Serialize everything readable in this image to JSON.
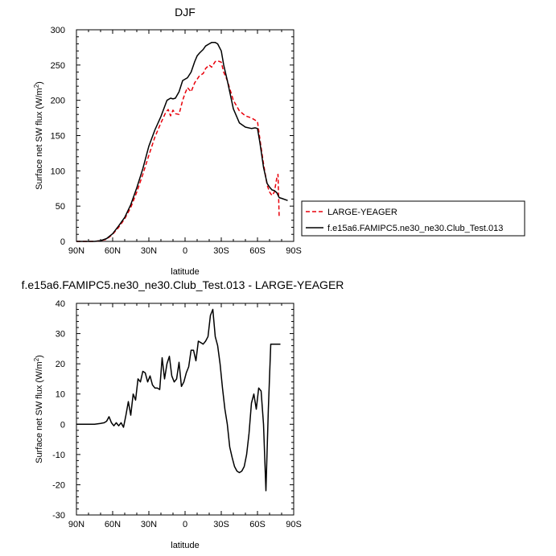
{
  "chart_data": [
    {
      "type": "line",
      "title": "DJF",
      "xlabel": "latitude",
      "ylabel": "Surface net SW flux (W/m²)",
      "xlim": [
        90,
        -90
      ],
      "ylim": [
        0,
        300
      ],
      "xticks": [
        90,
        60,
        30,
        0,
        -30,
        -60,
        -90
      ],
      "xtick_labels": [
        "90N",
        "60N",
        "30N",
        "0",
        "30S",
        "60S",
        "90S"
      ],
      "yticks": [
        0,
        50,
        100,
        150,
        200,
        250,
        300
      ],
      "ytick_labels": [
        "0",
        "50",
        "100",
        "150",
        "200",
        "250",
        "300"
      ],
      "legend": "right",
      "series": [
        {
          "name": "LARGE-YEAGER",
          "color": "#e8000b",
          "dash": "dashed",
          "x": [
            90,
            80,
            75,
            70,
            65,
            60,
            55,
            50,
            45,
            40,
            35,
            30,
            25,
            20,
            16,
            14,
            12,
            10,
            8,
            5,
            2,
            0,
            -2,
            -5,
            -8,
            -10,
            -12,
            -15,
            -17,
            -20,
            -22,
            -25,
            -27,
            -30,
            -32,
            -35,
            -40,
            -45,
            -50,
            -55,
            -60,
            -62,
            -65,
            -68,
            -70,
            -72,
            -74,
            -76,
            -77,
            -78
          ],
          "y": [
            0,
            0,
            0,
            1,
            3,
            10,
            20,
            32,
            48,
            70,
            95,
            122,
            148,
            168,
            183,
            187,
            178,
            186,
            181,
            180,
            200,
            210,
            218,
            212,
            225,
            230,
            235,
            238,
            245,
            250,
            247,
            255,
            256,
            254,
            240,
            228,
            200,
            185,
            178,
            175,
            170,
            145,
            110,
            80,
            70,
            65,
            70,
            90,
            95,
            33
          ]
        },
        {
          "name": "f.e15a6.FAMIPC5.ne30_ne30.Club_Test.013",
          "color": "#000000",
          "dash": "solid",
          "x": [
            90,
            80,
            75,
            70,
            65,
            60,
            55,
            50,
            45,
            40,
            35,
            30,
            25,
            20,
            15,
            12,
            10,
            8,
            5,
            2,
            0,
            -2,
            -5,
            -8,
            -10,
            -12,
            -15,
            -17,
            -20,
            -22,
            -25,
            -27,
            -30,
            -32,
            -35,
            -40,
            -45,
            -50,
            -55,
            -58,
            -60,
            -62,
            -65,
            -68,
            -70,
            -72,
            -74,
            -76,
            -78,
            -80,
            -85
          ],
          "y": [
            0,
            0,
            0,
            1,
            4,
            11,
            22,
            34,
            52,
            76,
            103,
            135,
            158,
            177,
            200,
            203,
            202,
            203,
            212,
            228,
            230,
            232,
            240,
            255,
            263,
            267,
            272,
            277,
            280,
            282,
            282,
            280,
            270,
            250,
            228,
            188,
            168,
            162,
            160,
            161,
            160,
            140,
            105,
            82,
            77,
            73,
            72,
            69,
            62,
            61,
            58
          ]
        }
      ]
    },
    {
      "type": "line",
      "title": "f.e15a6.FAMIPC5.ne30_ne30.Club_Test.013 - LARGE-YEAGER",
      "xlabel": "latitude",
      "ylabel": "Surface net SW flux (W/m²)",
      "xlim": [
        90,
        -90
      ],
      "ylim": [
        -30,
        40
      ],
      "xticks": [
        90,
        60,
        30,
        0,
        -30,
        -60,
        -90
      ],
      "xtick_labels": [
        "90N",
        "60N",
        "30N",
        "0",
        "30S",
        "60S",
        "90S"
      ],
      "yticks": [
        -30,
        -20,
        -10,
        0,
        10,
        20,
        30,
        40
      ],
      "ytick_labels": [
        "-30",
        "-20",
        "-10",
        "0",
        "10",
        "20",
        "30",
        "40"
      ],
      "series": [
        {
          "color": "#000000",
          "dash": "solid",
          "x": [
            90,
            80,
            75,
            70,
            67,
            65,
            63,
            61,
            59,
            57,
            55,
            53,
            51,
            49,
            47,
            45,
            43,
            41,
            39,
            37,
            35,
            33,
            31,
            29,
            27,
            25,
            23,
            21,
            19,
            17,
            15,
            13,
            11,
            9,
            7,
            5,
            3,
            1,
            -1,
            -3,
            -5,
            -7,
            -9,
            -11,
            -13,
            -15,
            -17,
            -19,
            -21,
            -23,
            -25,
            -27,
            -29,
            -31,
            -33,
            -35,
            -37,
            -39,
            -41,
            -43,
            -45,
            -47,
            -49,
            -51,
            -53,
            -55,
            -57,
            -59,
            -61,
            -63,
            -65,
            -67,
            -69,
            -71,
            -73,
            -75,
            -77,
            -79
          ],
          "y": [
            0,
            0,
            0,
            0.3,
            0.5,
            1,
            2.5,
            0.5,
            -0.5,
            0.5,
            -0.5,
            0.5,
            -1,
            3,
            7.5,
            3,
            10,
            8,
            15,
            14,
            17.5,
            17,
            14,
            16,
            13,
            12,
            12,
            11.5,
            22,
            15,
            20,
            22.5,
            16,
            14,
            15,
            20.5,
            12.5,
            14,
            17,
            19,
            24.5,
            24.5,
            21,
            27.5,
            27,
            26.5,
            27.5,
            29,
            36,
            38,
            29,
            26,
            20,
            12,
            5,
            0,
            -7.5,
            -11,
            -14,
            -15.5,
            -16,
            -15.5,
            -14,
            -10,
            -3,
            7,
            10,
            5,
            12,
            11,
            0,
            -22,
            5,
            26.5,
            26.5,
            26.5,
            26.5,
            26.5
          ]
        }
      ]
    }
  ]
}
